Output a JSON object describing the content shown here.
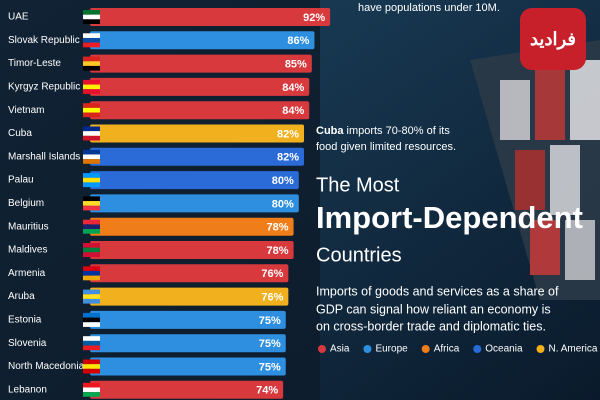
{
  "chart_data": {
    "type": "hbar",
    "title_lines": [
      "The Most",
      "Import-Dependent",
      "Countries"
    ],
    "top_note": "have populations under 10M.",
    "annotation": {
      "subject": "Cuba",
      "lines": [
        "imports 70-80% of its",
        "food given limited resources."
      ]
    },
    "description": [
      "Imports of goods and services as a share of",
      "GDP can signal how reliant an economy is",
      "on cross-border trade and diplomatic ties."
    ],
    "logo_text": "فرادید",
    "categories": [
      "UAE",
      "Slovak Republic",
      "Timor-Leste",
      "Kyrgyz Republic",
      "Vietnam",
      "Cuba",
      "Marshall Islands",
      "Palau",
      "Belgium",
      "Mauritius",
      "Maldives",
      "Armenia",
      "Aruba",
      "Estonia",
      "Slovenia",
      "North Macedonia",
      "Lebanon"
    ],
    "xlim": [
      0,
      100
    ],
    "series": [
      {
        "name": "Asia",
        "color": "#d8393d",
        "values": [
          92,
          null,
          85,
          84,
          84,
          null,
          null,
          null,
          null,
          null,
          78,
          76,
          null,
          null,
          null,
          null,
          74
        ],
        "value_labels": [
          "92%",
          null,
          "85%",
          "84%",
          "84%",
          null,
          null,
          null,
          null,
          null,
          "78%",
          "76%",
          null,
          null,
          null,
          null,
          "74%"
        ]
      },
      {
        "name": "Europe",
        "color": "#2e8fe0",
        "values": [
          null,
          86,
          null,
          null,
          null,
          null,
          null,
          null,
          80,
          null,
          null,
          null,
          null,
          75,
          75,
          75,
          null
        ],
        "value_labels": [
          null,
          "86%",
          null,
          null,
          null,
          null,
          null,
          null,
          "80%",
          null,
          null,
          null,
          null,
          "75%",
          "75%",
          "75%",
          null
        ]
      },
      {
        "name": "Africa",
        "color": "#ee7d1a",
        "values": [
          null,
          null,
          null,
          null,
          null,
          null,
          null,
          null,
          null,
          78,
          null,
          null,
          null,
          null,
          null,
          null,
          null
        ],
        "value_labels": [
          null,
          null,
          null,
          null,
          null,
          null,
          null,
          null,
          null,
          "78%",
          null,
          null,
          null,
          null,
          null,
          null,
          null
        ]
      },
      {
        "name": "Oceania",
        "color": "#2a6bd8",
        "values": [
          null,
          null,
          null,
          null,
          null,
          null,
          82,
          80,
          null,
          null,
          null,
          null,
          null,
          null,
          null,
          null,
          null
        ],
        "value_labels": [
          null,
          null,
          null,
          null,
          null,
          null,
          "82%",
          "80%",
          null,
          null,
          null,
          null,
          null,
          null,
          null,
          null,
          null
        ]
      },
      {
        "name": "N. America",
        "color": "#f1b01d",
        "values": [
          null,
          null,
          null,
          null,
          null,
          82,
          null,
          null,
          null,
          null,
          null,
          null,
          76,
          null,
          null,
          null,
          null
        ],
        "value_labels": [
          null,
          null,
          null,
          null,
          null,
          "82%",
          null,
          null,
          null,
          null,
          null,
          null,
          "76%",
          null,
          null,
          null,
          null
        ]
      }
    ]
  }
}
